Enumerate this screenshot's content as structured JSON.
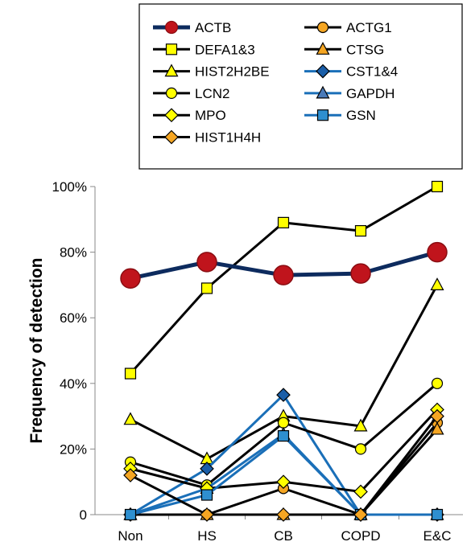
{
  "chart_data": {
    "type": "line",
    "title": "",
    "xlabel": "",
    "ylabel": "Frequency of detection",
    "categories": [
      "Non",
      "HS",
      "CB",
      "COPD",
      "E&C"
    ],
    "ylim": [
      0,
      100
    ],
    "yticks": [
      "0",
      "20%",
      "40%",
      "60%",
      "80%",
      "100%"
    ],
    "grid": false,
    "legend_position": "top",
    "series": [
      {
        "name": "ACTB",
        "values": [
          72,
          77,
          73,
          73.5,
          80
        ],
        "color": "#0d2b5e",
        "marker": "circle-large",
        "fill": "#c0141c"
      },
      {
        "name": "ACTG1",
        "values": [
          0,
          0,
          8,
          0,
          28
        ],
        "color": "#000000",
        "marker": "circle",
        "fill": "#f5a623"
      },
      {
        "name": "DEFA1&3",
        "values": [
          43,
          69,
          89,
          86.5,
          100
        ],
        "color": "#000000",
        "marker": "square",
        "fill": "#ffff00"
      },
      {
        "name": "CTSG",
        "values": [
          0,
          0,
          0,
          0,
          26
        ],
        "color": "#000000",
        "marker": "triangle",
        "fill": "#f5a623"
      },
      {
        "name": "HIST2H2BE",
        "values": [
          29,
          17,
          30,
          27,
          70
        ],
        "color": "#000000",
        "marker": "triangle",
        "fill": "#ffff00"
      },
      {
        "name": "CST1&4",
        "values": [
          0,
          14,
          36.5,
          0,
          0
        ],
        "color": "#1a6fb8",
        "marker": "diamond",
        "fill": "#1a5ea8"
      },
      {
        "name": "LCN2",
        "values": [
          16,
          9,
          28,
          20,
          40
        ],
        "color": "#000000",
        "marker": "circle",
        "fill": "#ffff00"
      },
      {
        "name": "GAPDH",
        "values": [
          0,
          8,
          24.5,
          0,
          0
        ],
        "color": "#1a6fb8",
        "marker": "triangle",
        "fill": "#4a7ab8"
      },
      {
        "name": "MPO",
        "values": [
          14,
          8,
          10,
          7,
          32
        ],
        "color": "#000000",
        "marker": "diamond",
        "fill": "#ffff00"
      },
      {
        "name": "GSN",
        "values": [
          0,
          6,
          24,
          0,
          0
        ],
        "color": "#1a6fb8",
        "marker": "square",
        "fill": "#2e8fd0"
      },
      {
        "name": "HIST1H4H",
        "values": [
          12,
          0,
          0,
          0,
          30
        ],
        "color": "#000000",
        "marker": "diamond",
        "fill": "#f5a623"
      }
    ]
  }
}
